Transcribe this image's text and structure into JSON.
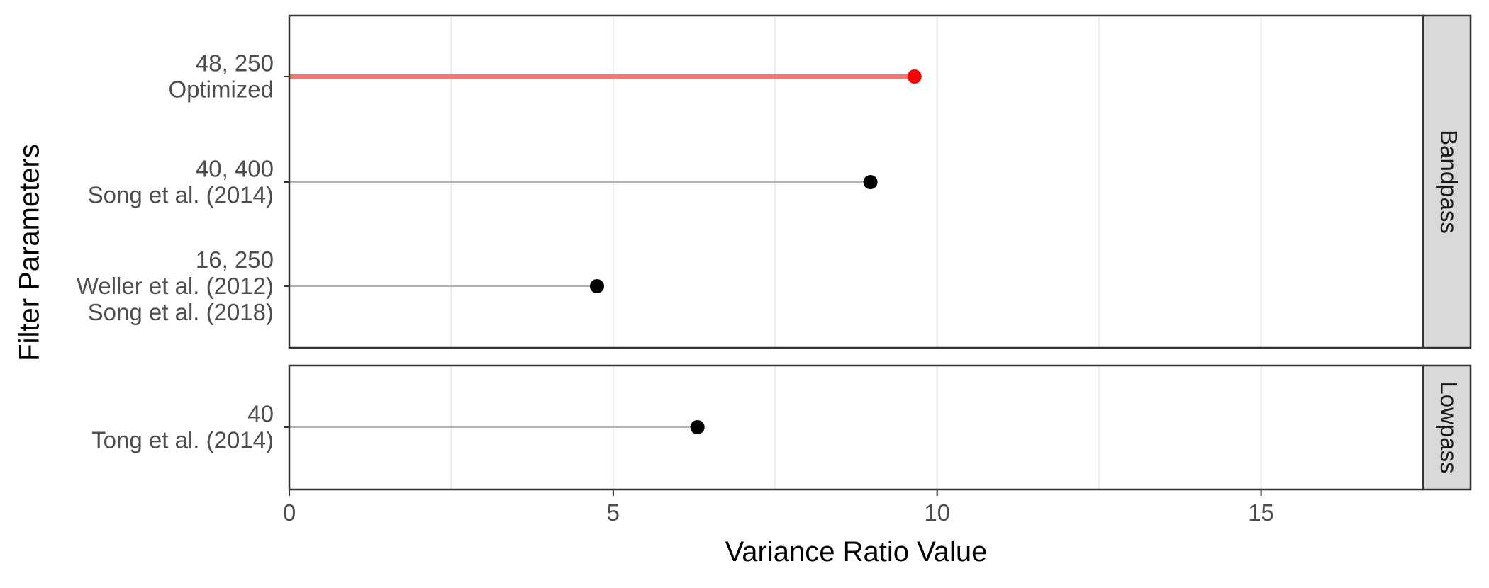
{
  "chart_data": {
    "type": "lollipop",
    "xlabel": "Variance Ratio Value",
    "ylabel": "Filter Parameters",
    "xlim": [
      0,
      17.5
    ],
    "x_ticks": [
      0,
      5,
      10,
      15
    ],
    "x_tick_labels": [
      "0",
      "5",
      "10",
      "15"
    ],
    "grid": true,
    "highlight_color": "#ff0000",
    "highlight_line_color": "#f8766d",
    "default_point_color": "#000000",
    "default_line_color": "#999999",
    "panel_background": "#ffffff",
    "strip_background": "#d9d9d9",
    "gridline_color": "#ebebeb",
    "facets": [
      {
        "label": "Bandpass",
        "items": [
          {
            "label_lines": [
              "48, 250",
              "Optimized"
            ],
            "value": 9.65,
            "highlight": true
          },
          {
            "label_lines": [
              "40, 400",
              "Song et al. (2014)"
            ],
            "value": 8.97,
            "highlight": false
          },
          {
            "label_lines": [
              "16, 250",
              "Weller et al. (2012)",
              "Song et al. (2018)"
            ],
            "value": 4.75,
            "highlight": false
          }
        ]
      },
      {
        "label": "Lowpass",
        "items": [
          {
            "label_lines": [
              "40",
              "Tong et al. (2014)"
            ],
            "value": 6.3,
            "highlight": false
          }
        ]
      }
    ]
  }
}
